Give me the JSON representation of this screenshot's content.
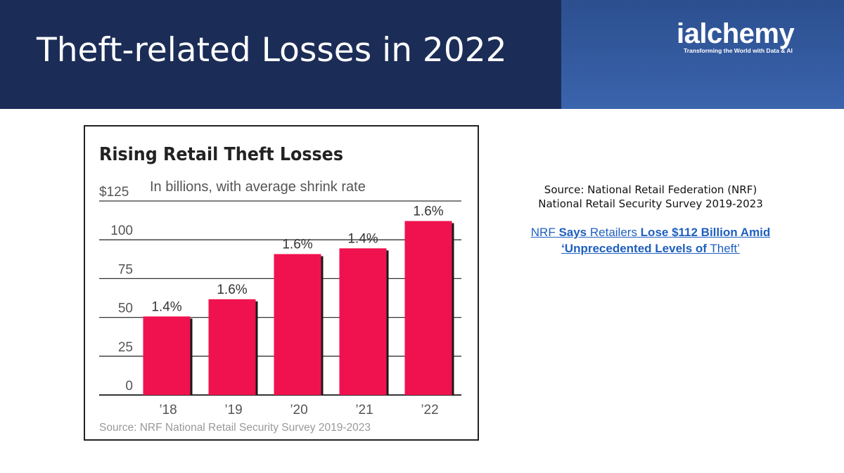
{
  "slide": {
    "title": "Theft-related Losses in 2022",
    "logo_text": "ialchemy",
    "logo_tagline": "Transforming the World with Data & AI"
  },
  "source_note": {
    "line1": "Source: National Retail Federation (NRF)",
    "line2": "National Retail Security Survey 2019-2023",
    "link_parts": [
      "NRF ",
      "Says",
      " Retailers ",
      "Lose $112 Billion Amid",
      "‘Unprecedented Levels of",
      " Theft’"
    ]
  },
  "colors": {
    "header_bg": "#1b2d57",
    "bar": "#f0124f",
    "link": "#1f5fbf"
  },
  "chart_data": {
    "type": "bar",
    "title": "Rising Retail Theft Losses",
    "subtitle": "In billions, with average shrink rate",
    "categories": [
      "’18",
      "’19",
      "’20",
      "’21",
      "’22"
    ],
    "values": [
      50.6,
      61.7,
      90.8,
      94.5,
      112.1
    ],
    "bar_labels": [
      "1.4%",
      "1.6%",
      "1.6%",
      "1.4%",
      "1.6%"
    ],
    "yticks": [
      0,
      25,
      50,
      75,
      100,
      125
    ],
    "ytick_labels": [
      "0",
      "25",
      "50",
      "75",
      "100",
      "$125"
    ],
    "ylim": [
      0,
      125
    ],
    "grid": true,
    "source": "Source: NRF National Retail Security Survey 2019-2023"
  }
}
